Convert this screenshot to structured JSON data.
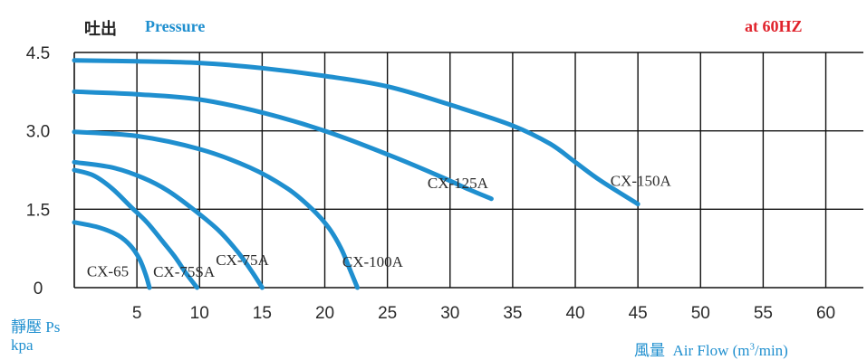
{
  "header": {
    "title_cn": "吐出",
    "title_en": "Pressure",
    "condition": "at  60HZ"
  },
  "y_axis_label": {
    "line1": "靜壓 Ps",
    "line2": "kpa"
  },
  "x_axis_label": {
    "cn": "風量",
    "en": "Air Flow (m",
    "sup": "3",
    "tail": "/min)"
  },
  "colors": {
    "curve": "#1f8fcf",
    "header_blue": "#1f8fcf",
    "header_red": "#e0222b",
    "grid": "#111111"
  },
  "chart_data": {
    "type": "line",
    "xlabel": "風量 Air Flow (m3/min)",
    "ylabel": "靜壓 Ps kpa",
    "xlim": [
      0,
      60
    ],
    "ylim": [
      0,
      4.5
    ],
    "x_ticks": [
      "5",
      "10",
      "15",
      "20",
      "25",
      "30",
      "35",
      "40",
      "45",
      "50",
      "55",
      "60"
    ],
    "x_tick_values": [
      5,
      10,
      15,
      20,
      25,
      30,
      35,
      40,
      45,
      50,
      55,
      60
    ],
    "y_ticks": [
      "0",
      "1.5",
      "3.0",
      "4.5"
    ],
    "y_tick_values": [
      0,
      1.5,
      3.0,
      4.5
    ],
    "grid": true,
    "series": [
      {
        "name": "CX-65",
        "x": [
          0,
          2,
          3.5,
          4.5,
          5.2,
          5.7,
          6.0
        ],
        "y": [
          1.25,
          1.15,
          1.0,
          0.8,
          0.55,
          0.25,
          0
        ]
      },
      {
        "name": "CX-75SA",
        "x": [
          0,
          1.5,
          3.0,
          4.5,
          5.8,
          7.0,
          8.0,
          9.0,
          9.8
        ],
        "y": [
          2.25,
          2.15,
          1.9,
          1.55,
          1.25,
          0.9,
          0.6,
          0.25,
          0
        ]
      },
      {
        "name": "CX-75A",
        "x": [
          0,
          3,
          5.5,
          7.5,
          9.5,
          11.5,
          13.0,
          14.2,
          15.0
        ],
        "y": [
          2.4,
          2.3,
          2.1,
          1.85,
          1.5,
          1.1,
          0.7,
          0.3,
          0
        ]
      },
      {
        "name": "CX-100A",
        "x": [
          0,
          5,
          10,
          14,
          17,
          19,
          20.3,
          21.3,
          22.0,
          22.6
        ],
        "y": [
          2.98,
          2.9,
          2.65,
          2.3,
          1.9,
          1.5,
          1.15,
          0.75,
          0.35,
          0
        ]
      },
      {
        "name": "CX-125A",
        "x": [
          0,
          5,
          10,
          15,
          20,
          25,
          29,
          31.5,
          33.3
        ],
        "y": [
          3.75,
          3.7,
          3.6,
          3.35,
          3.0,
          2.55,
          2.15,
          1.88,
          1.7
        ]
      },
      {
        "name": "CX-150A",
        "x": [
          0,
          5,
          10,
          15,
          20,
          25,
          30,
          35,
          38,
          40,
          42,
          45
        ],
        "y": [
          4.35,
          4.33,
          4.3,
          4.2,
          4.05,
          3.85,
          3.5,
          3.1,
          2.75,
          2.4,
          2.05,
          1.6
        ]
      }
    ],
    "curve_labels": [
      "CX-65",
      "CX-75SA",
      "CX-75A",
      "CX-100A",
      "CX-125A",
      "CX-150A"
    ]
  }
}
